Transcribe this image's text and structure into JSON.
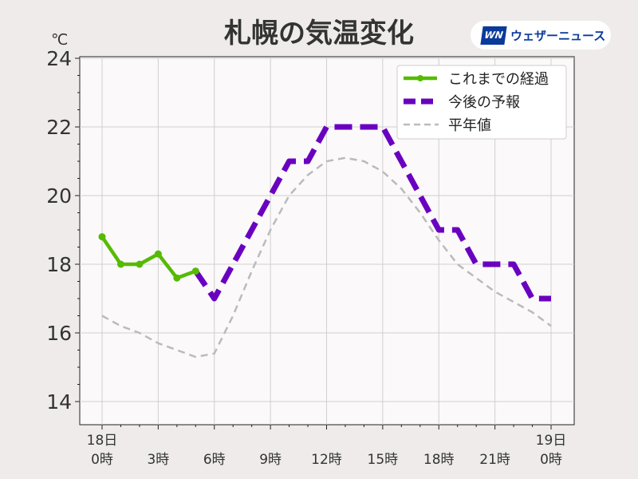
{
  "chart_data": {
    "type": "line",
    "title": "札幌の気温変化",
    "ylabel": "℃",
    "ylim": [
      13.3,
      24
    ],
    "xlim": [
      -1.2,
      25.2
    ],
    "yticks": [
      14,
      16,
      18,
      20,
      22,
      24
    ],
    "xtick_labels": [
      {
        "x": 0,
        "l1": "18日",
        "l2": "0時"
      },
      {
        "x": 3,
        "l1": "",
        "l2": "3時"
      },
      {
        "x": 6,
        "l1": "",
        "l2": "6時"
      },
      {
        "x": 9,
        "l1": "",
        "l2": "9時"
      },
      {
        "x": 12,
        "l1": "",
        "l2": "12時"
      },
      {
        "x": 15,
        "l1": "",
        "l2": "15時"
      },
      {
        "x": 18,
        "l1": "",
        "l2": "18時"
      },
      {
        "x": 21,
        "l1": "",
        "l2": "21時"
      },
      {
        "x": 24,
        "l1": "19日",
        "l2": "0時"
      }
    ],
    "grid": true,
    "legend_position": "top-right",
    "series": [
      {
        "name": "これまでの経過",
        "color": "#55bb00",
        "style": "solid-markers",
        "x": [
          0,
          1,
          2,
          3,
          4,
          5
        ],
        "y": [
          18.8,
          18.0,
          18.0,
          18.3,
          17.6,
          17.8
        ]
      },
      {
        "name": "今後の予報",
        "color": "#6a00c0",
        "style": "dashed-thick",
        "x": [
          5,
          6,
          7,
          8,
          9,
          10,
          11,
          12,
          13,
          14,
          15,
          16,
          17,
          18,
          19,
          20,
          21,
          22,
          23,
          24
        ],
        "y": [
          17.8,
          17,
          18,
          19,
          20,
          21,
          21,
          22,
          22,
          22,
          22,
          21,
          20,
          19,
          19,
          18,
          18,
          18,
          17,
          17
        ]
      },
      {
        "name": "平年値",
        "color": "#bbbbbb",
        "style": "dashed",
        "x": [
          0,
          1,
          2,
          3,
          4,
          5,
          6,
          7,
          8,
          9,
          10,
          11,
          12,
          13,
          14,
          15,
          16,
          17,
          18,
          19,
          20,
          21,
          22,
          23,
          24
        ],
        "y": [
          16.5,
          16.2,
          16.0,
          15.7,
          15.5,
          15.3,
          15.4,
          16.5,
          17.8,
          19.0,
          20.0,
          20.6,
          21.0,
          21.1,
          21.0,
          20.7,
          20.2,
          19.5,
          18.7,
          18.0,
          17.6,
          17.2,
          16.9,
          16.6,
          16.2
        ]
      }
    ]
  },
  "logo": {
    "mark": "WN",
    "text": "ウェザーニュース"
  }
}
